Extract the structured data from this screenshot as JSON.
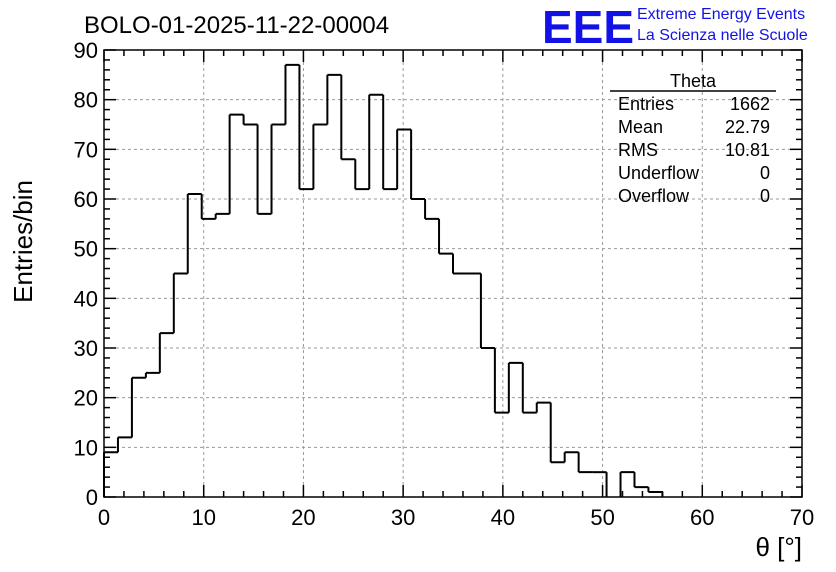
{
  "chart_data": {
    "type": "histogram",
    "title": "BOLO-01-2025-11-22-00004",
    "xlabel": "θ [°]",
    "ylabel": "Entries/bin",
    "xlim": [
      0,
      70
    ],
    "ylim": [
      0,
      90
    ],
    "xticks": [
      0,
      10,
      20,
      30,
      40,
      50,
      60,
      70
    ],
    "yticks": [
      0,
      10,
      20,
      30,
      40,
      50,
      60,
      70,
      80,
      90
    ],
    "grid": true,
    "bin_width": 1.4,
    "bin_edges_start": 0,
    "values": [
      9,
      12,
      24,
      25,
      33,
      45,
      61,
      56,
      57,
      77,
      75,
      57,
      75,
      87,
      62,
      75,
      85,
      68,
      62,
      81,
      62,
      74,
      60,
      56,
      49,
      45,
      45,
      30,
      17,
      27,
      17,
      19,
      7,
      9,
      5,
      5,
      0,
      5,
      2,
      1,
      0,
      0,
      0,
      0,
      0,
      0,
      0,
      0,
      0,
      0
    ],
    "line_color": "#000000",
    "stats_box": {
      "name": "Theta",
      "rows": [
        {
          "label": "Entries",
          "value": "1662"
        },
        {
          "label": "Mean",
          "value": "22.79"
        },
        {
          "label": "RMS",
          "value": "10.81"
        },
        {
          "label": "Underflow",
          "value": "0"
        },
        {
          "label": "Overflow",
          "value": "0"
        }
      ]
    }
  },
  "logo": {
    "mark": "EEE",
    "line1": "Extreme Energy Events",
    "line2": "La Scienza nelle Scuole",
    "color": "#1212e6"
  }
}
